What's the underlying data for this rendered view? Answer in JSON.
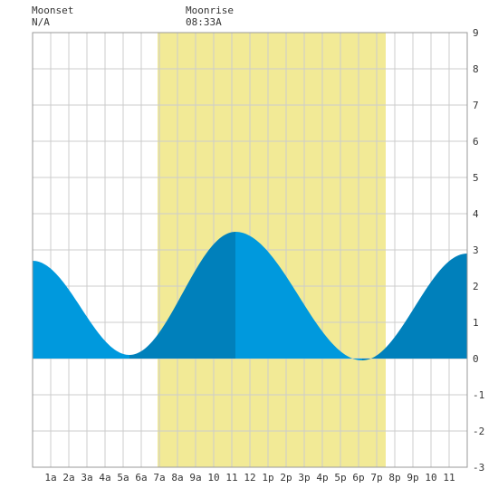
{
  "header": {
    "moonset": {
      "label": "Moonset",
      "time": "N/A"
    },
    "moonrise": {
      "label": "Moonrise",
      "time": "08:33A"
    }
  },
  "colors": {
    "daylight": "#f2ea96",
    "rising": "#0080bb",
    "falling": "#0099dd",
    "grid": "#cccccc",
    "border": "#999999"
  },
  "chart_data": {
    "type": "area",
    "title": "",
    "xlabel": "",
    "ylabel": "",
    "ylim": [
      -3,
      9
    ],
    "xlim": [
      0,
      24
    ],
    "grid": true,
    "y_ticks": [
      -3,
      -2,
      -1,
      0,
      1,
      2,
      3,
      4,
      5,
      6,
      7,
      8,
      9
    ],
    "x_ticks": [
      {
        "x": 1,
        "label": "1a"
      },
      {
        "x": 2,
        "label": "2a"
      },
      {
        "x": 3,
        "label": "3a"
      },
      {
        "x": 4,
        "label": "4a"
      },
      {
        "x": 5,
        "label": "5a"
      },
      {
        "x": 6,
        "label": "6a"
      },
      {
        "x": 7,
        "label": "7a"
      },
      {
        "x": 8,
        "label": "8a"
      },
      {
        "x": 9,
        "label": "9a"
      },
      {
        "x": 10,
        "label": "10"
      },
      {
        "x": 11,
        "label": "11"
      },
      {
        "x": 12,
        "label": "12"
      },
      {
        "x": 13,
        "label": "1p"
      },
      {
        "x": 14,
        "label": "2p"
      },
      {
        "x": 15,
        "label": "3p"
      },
      {
        "x": 16,
        "label": "4p"
      },
      {
        "x": 17,
        "label": "5p"
      },
      {
        "x": 18,
        "label": "6p"
      },
      {
        "x": 19,
        "label": "7p"
      },
      {
        "x": 20,
        "label": "8p"
      },
      {
        "x": 21,
        "label": "9p"
      },
      {
        "x": 22,
        "label": "10"
      },
      {
        "x": 23,
        "label": "11"
      }
    ],
    "daylight": {
      "start": 6.9,
      "end": 19.5
    },
    "extremes": [
      {
        "x": 0,
        "y": 2.7
      },
      {
        "x": 5.35,
        "y": 0.1
      },
      {
        "x": 11.2,
        "y": 3.5
      },
      {
        "x": 18.2,
        "y": -0.05
      },
      {
        "x": 24,
        "y": 2.9
      }
    ]
  }
}
